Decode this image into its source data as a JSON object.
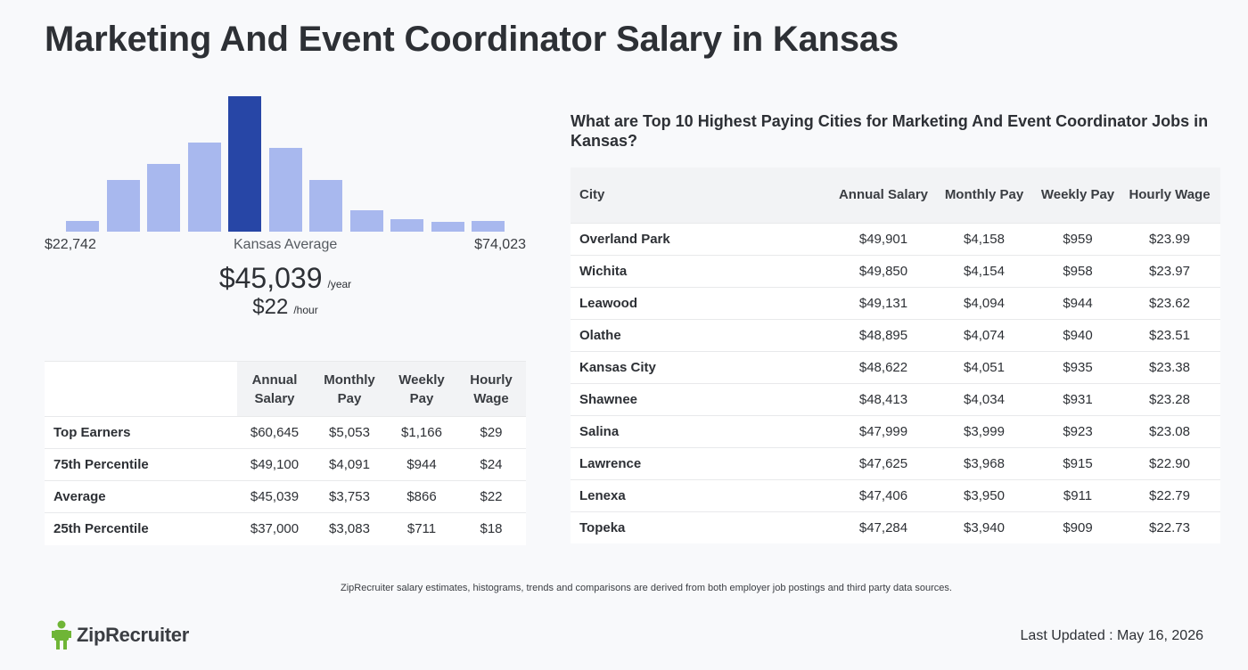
{
  "title": "Marketing And Event Coordinator Salary in Kansas",
  "histogram": {
    "min_label": "$22,742",
    "max_label": "$74,023",
    "mid_label": "Kansas Average",
    "active_index": 4,
    "bar_levels": [
      0.08,
      0.38,
      0.5,
      0.66,
      1.0,
      0.62,
      0.38,
      0.16,
      0.09,
      0.07,
      0.08
    ],
    "bar_color": "#a8b8ee",
    "active_color": "#2746a6"
  },
  "average": {
    "yearly": "$45,039",
    "yearly_unit": "/year",
    "hourly": "$22",
    "hourly_unit": "/hour"
  },
  "percentile_table": {
    "headers": [
      "Annual Salary",
      "Monthly Pay",
      "Weekly Pay",
      "Hourly Wage"
    ],
    "rows": [
      {
        "label": "Top Earners",
        "annual": "$60,645",
        "monthly": "$5,053",
        "weekly": "$1,166",
        "hourly": "$29"
      },
      {
        "label": "75th Percentile",
        "annual": "$49,100",
        "monthly": "$4,091",
        "weekly": "$944",
        "hourly": "$24"
      },
      {
        "label": "Average",
        "annual": "$45,039",
        "monthly": "$3,753",
        "weekly": "$866",
        "hourly": "$22"
      },
      {
        "label": "25th Percentile",
        "annual": "$37,000",
        "monthly": "$3,083",
        "weekly": "$711",
        "hourly": "$18"
      }
    ]
  },
  "cities": {
    "title": "What are Top 10 Highest Paying Cities for Marketing And Event Coordinator Jobs in Kansas?",
    "headers": [
      "City",
      "Annual Salary",
      "Monthly Pay",
      "Weekly Pay",
      "Hourly Wage"
    ],
    "rows": [
      {
        "city": "Overland Park",
        "annual": "$49,901",
        "monthly": "$4,158",
        "weekly": "$959",
        "hourly": "$23.99"
      },
      {
        "city": "Wichita",
        "annual": "$49,850",
        "monthly": "$4,154",
        "weekly": "$958",
        "hourly": "$23.97"
      },
      {
        "city": "Leawood",
        "annual": "$49,131",
        "monthly": "$4,094",
        "weekly": "$944",
        "hourly": "$23.62"
      },
      {
        "city": "Olathe",
        "annual": "$48,895",
        "monthly": "$4,074",
        "weekly": "$940",
        "hourly": "$23.51"
      },
      {
        "city": "Kansas City",
        "annual": "$48,622",
        "monthly": "$4,051",
        "weekly": "$935",
        "hourly": "$23.38"
      },
      {
        "city": "Shawnee",
        "annual": "$48,413",
        "monthly": "$4,034",
        "weekly": "$931",
        "hourly": "$23.28"
      },
      {
        "city": "Salina",
        "annual": "$47,999",
        "monthly": "$3,999",
        "weekly": "$923",
        "hourly": "$23.08"
      },
      {
        "city": "Lawrence",
        "annual": "$47,625",
        "monthly": "$3,968",
        "weekly": "$915",
        "hourly": "$22.90"
      },
      {
        "city": "Lenexa",
        "annual": "$47,406",
        "monthly": "$3,950",
        "weekly": "$911",
        "hourly": "$22.79"
      },
      {
        "city": "Topeka",
        "annual": "$47,284",
        "monthly": "$3,940",
        "weekly": "$909",
        "hourly": "$22.73"
      }
    ]
  },
  "footnote": "ZipRecruiter salary estimates, histograms, trends and comparisons are derived from both employer job postings and third party data sources.",
  "brand": {
    "name": "ZipRecruiter",
    "logo_icon": "ziprecruiter-mascot-icon",
    "logo_color": "#6fb536"
  },
  "last_updated": "Last Updated : May 16, 2026"
}
